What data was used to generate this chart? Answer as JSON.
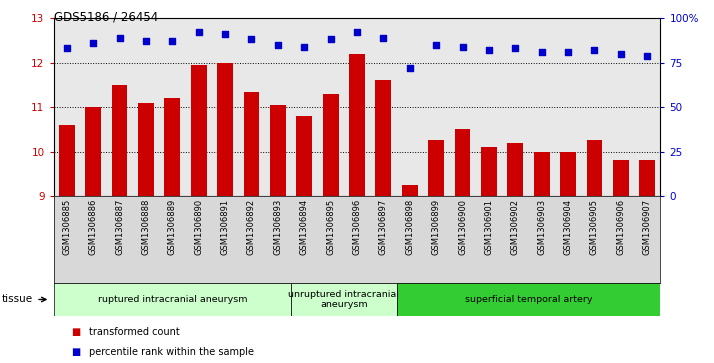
{
  "title": "GDS5186 / 26454",
  "samples": [
    "GSM1306885",
    "GSM1306886",
    "GSM1306887",
    "GSM1306888",
    "GSM1306889",
    "GSM1306890",
    "GSM1306891",
    "GSM1306892",
    "GSM1306893",
    "GSM1306894",
    "GSM1306895",
    "GSM1306896",
    "GSM1306897",
    "GSM1306898",
    "GSM1306899",
    "GSM1306900",
    "GSM1306901",
    "GSM1306902",
    "GSM1306903",
    "GSM1306904",
    "GSM1306905",
    "GSM1306906",
    "GSM1306907"
  ],
  "bar_values": [
    10.6,
    11.0,
    11.5,
    11.1,
    11.2,
    11.95,
    12.0,
    11.35,
    11.05,
    10.8,
    11.3,
    12.2,
    11.6,
    9.25,
    10.25,
    10.5,
    10.1,
    10.2,
    10.0,
    9.98,
    10.25,
    9.8,
    9.8
  ],
  "percentile_values": [
    83,
    86,
    89,
    87,
    87,
    92,
    91,
    88,
    85,
    84,
    88,
    92,
    89,
    72,
    85,
    84,
    82,
    83,
    81,
    81,
    82,
    80,
    79
  ],
  "ylim_left": [
    9,
    13
  ],
  "ylim_right": [
    0,
    100
  ],
  "yticks_left": [
    9,
    10,
    11,
    12,
    13
  ],
  "yticks_right": [
    0,
    25,
    50,
    75,
    100
  ],
  "ytick_labels_right": [
    "0",
    "25",
    "50",
    "75",
    "100%"
  ],
  "bar_color": "#cc0000",
  "scatter_color": "#0000cc",
  "groups": [
    {
      "label": "ruptured intracranial aneurysm",
      "start": 0,
      "end": 9,
      "color": "#ccffcc"
    },
    {
      "label": "unruptured intracranial\naneurysm",
      "start": 9,
      "end": 13,
      "color": "#ccffcc"
    },
    {
      "label": "superficial temporal artery",
      "start": 13,
      "end": 23,
      "color": "#33cc33"
    }
  ],
  "tissue_label": "tissue",
  "legend_bar_label": "transformed count",
  "legend_scatter_label": "percentile rank within the sample",
  "plot_bg_color": "#e8e8e8",
  "xtick_bg_color": "#d8d8d8",
  "dotted_lines": [
    10,
    11,
    12
  ]
}
